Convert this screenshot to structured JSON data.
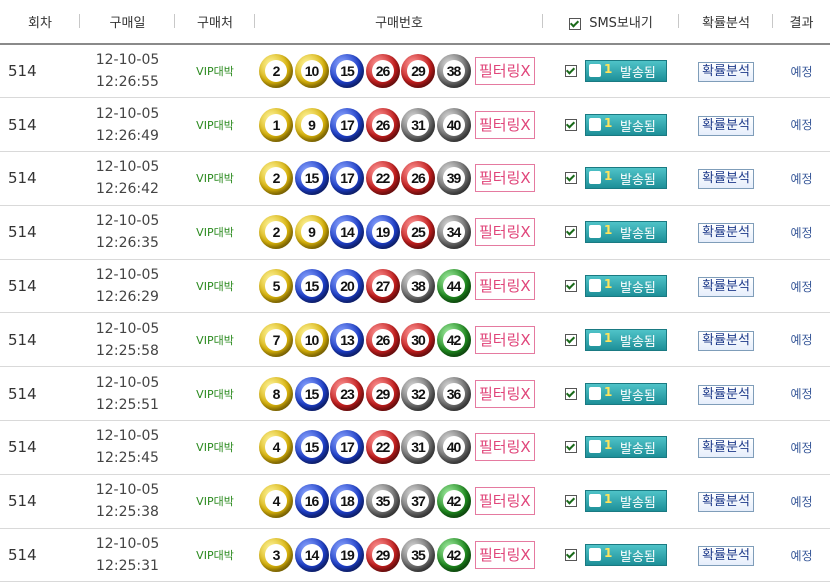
{
  "header": {
    "round": "회차",
    "date": "구매일",
    "shop": "구매처",
    "numbers": "구매번호",
    "sms": "SMS보내기",
    "analysis": "확률분석",
    "result": "결과"
  },
  "labels": {
    "filter": "필터링",
    "filter_x": "X",
    "sent_count": "1",
    "sent": "발송됨",
    "analysis_button": "확률분석"
  },
  "colors": {
    "yellow": "#d8b20a",
    "blue": "#1e3fc9",
    "red": "#c41e1e",
    "gray": "#6e6e6e",
    "green": "#1f8a1f"
  },
  "rows": [
    {
      "round": "514",
      "date": "12-10-05",
      "time": "12:26:55",
      "shop": "VIP대박",
      "numbers": [
        2,
        10,
        15,
        26,
        29,
        38
      ],
      "result": "예정"
    },
    {
      "round": "514",
      "date": "12-10-05",
      "time": "12:26:49",
      "shop": "VIP대박",
      "numbers": [
        1,
        9,
        17,
        26,
        31,
        40
      ],
      "result": "예정"
    },
    {
      "round": "514",
      "date": "12-10-05",
      "time": "12:26:42",
      "shop": "VIP대박",
      "numbers": [
        2,
        15,
        17,
        22,
        26,
        39
      ],
      "result": "예정"
    },
    {
      "round": "514",
      "date": "12-10-05",
      "time": "12:26:35",
      "shop": "VIP대박",
      "numbers": [
        2,
        9,
        14,
        19,
        25,
        34
      ],
      "result": "예정"
    },
    {
      "round": "514",
      "date": "12-10-05",
      "time": "12:26:29",
      "shop": "VIP대박",
      "numbers": [
        5,
        15,
        20,
        27,
        38,
        44
      ],
      "result": "예정"
    },
    {
      "round": "514",
      "date": "12-10-05",
      "time": "12:25:58",
      "shop": "VIP대박",
      "numbers": [
        7,
        10,
        13,
        26,
        30,
        42
      ],
      "result": "예정"
    },
    {
      "round": "514",
      "date": "12-10-05",
      "time": "12:25:51",
      "shop": "VIP대박",
      "numbers": [
        8,
        15,
        23,
        29,
        32,
        36
      ],
      "result": "예정"
    },
    {
      "round": "514",
      "date": "12-10-05",
      "time": "12:25:45",
      "shop": "VIP대박",
      "numbers": [
        4,
        15,
        17,
        22,
        31,
        40
      ],
      "result": "예정"
    },
    {
      "round": "514",
      "date": "12-10-05",
      "time": "12:25:38",
      "shop": "VIP대박",
      "numbers": [
        4,
        16,
        18,
        35,
        37,
        42
      ],
      "result": "예정"
    },
    {
      "round": "514",
      "date": "12-10-05",
      "time": "12:25:31",
      "shop": "VIP대박",
      "numbers": [
        3,
        14,
        19,
        29,
        35,
        42
      ],
      "result": "예정"
    }
  ]
}
